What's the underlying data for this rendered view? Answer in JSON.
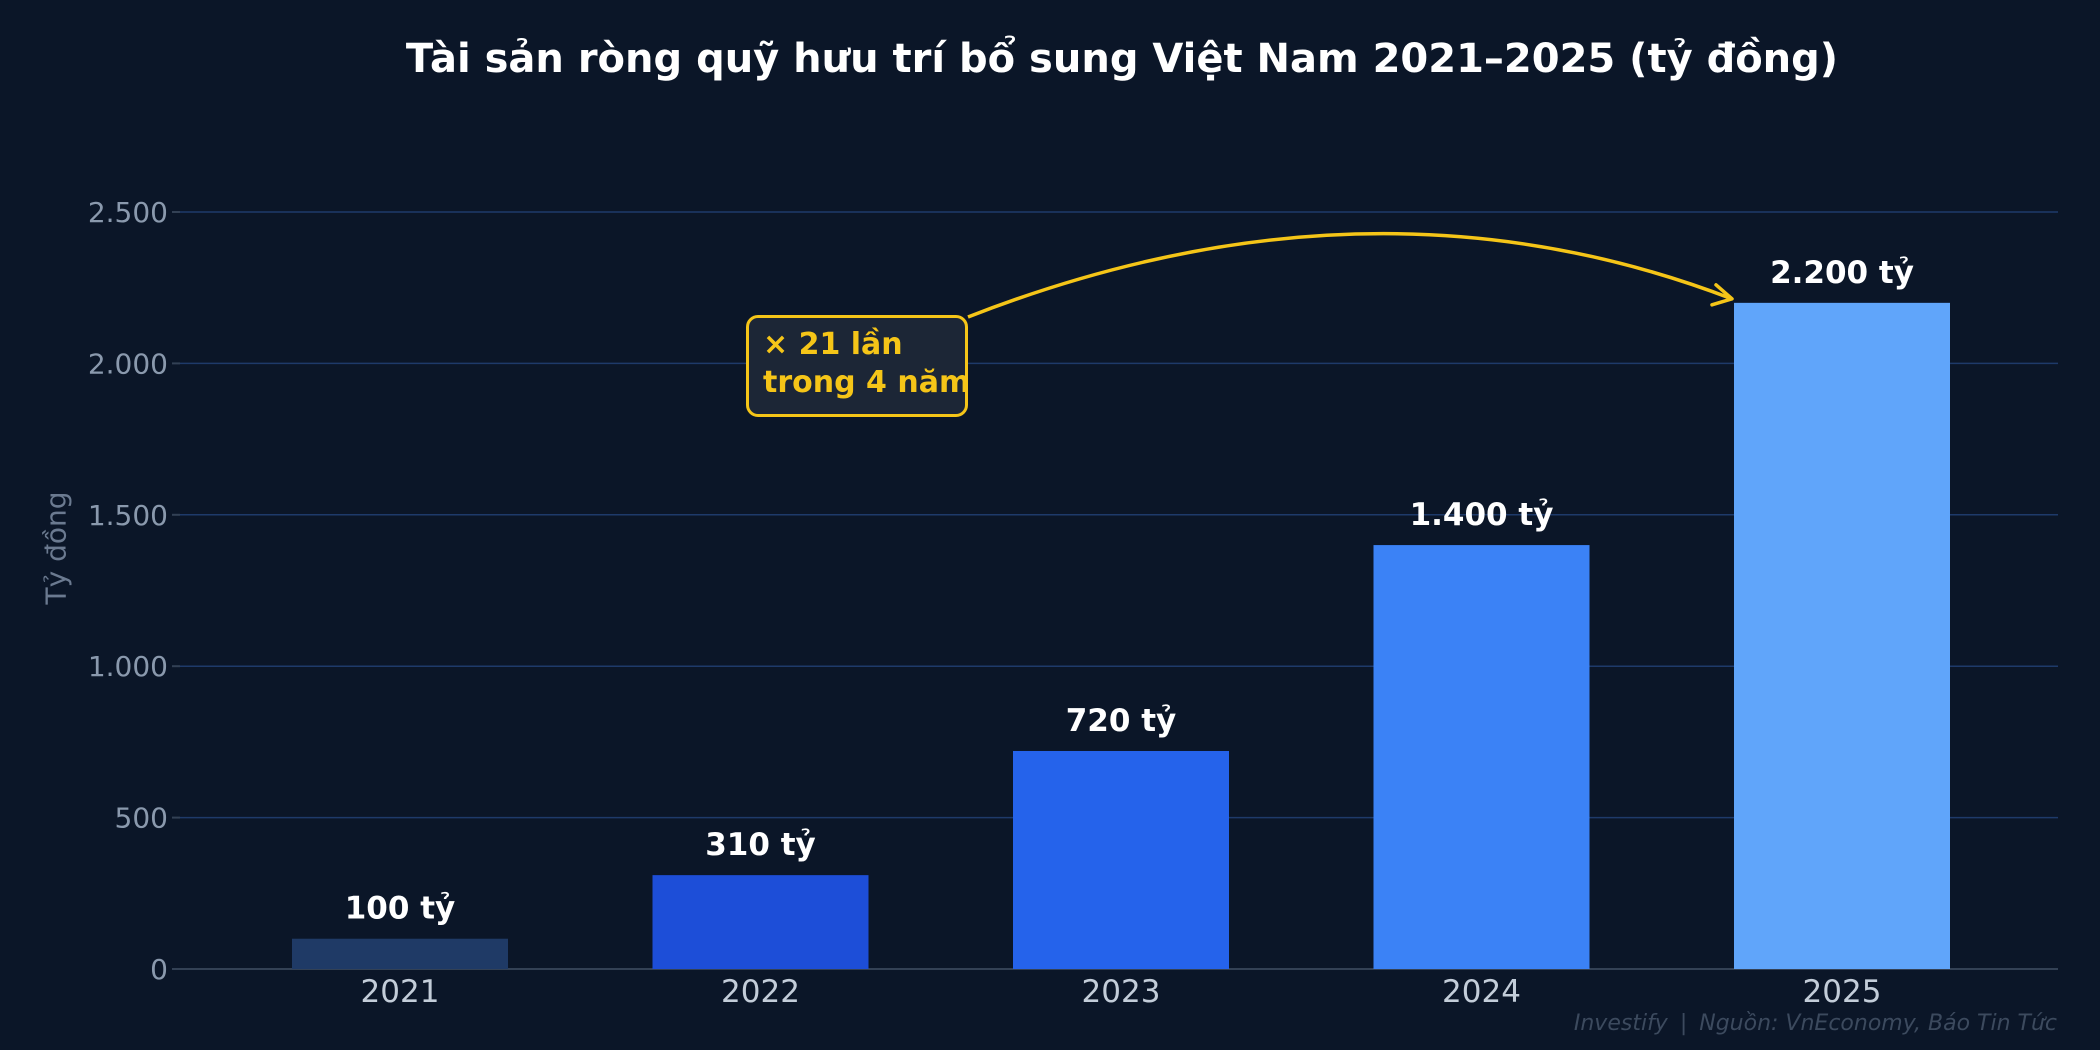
{
  "chart_data": {
    "type": "bar",
    "title": "Tài sản ròng quỹ hưu trí bổ sung Việt Nam 2021–2025 (tỷ đồng)",
    "ylabel": "Tỷ đồng",
    "xlabel": "",
    "categories": [
      "2021",
      "2022",
      "2023",
      "2024",
      "2025"
    ],
    "values": [
      100,
      310,
      720,
      1400,
      2200
    ],
    "data_labels": [
      "100 tỷ",
      "310 tỷ",
      "720 tỷ",
      "1.400 tỷ",
      "2.200 tỷ"
    ],
    "ylim": [
      0,
      2600
    ],
    "yticks": [
      0,
      500,
      1000,
      1500,
      2000,
      2500
    ],
    "ytick_labels": [
      "0",
      "500",
      "1.000",
      "1.500",
      "2.000",
      "2.500"
    ],
    "bar_colors": [
      "#1f3a66",
      "#1d4ed8",
      "#2563eb",
      "#3b82f6",
      "#60a5fa"
    ],
    "grid": true,
    "annotation": {
      "line1": "× 21 lần",
      "line2": "trong 4 năm",
      "color": "#f5c518"
    }
  },
  "footer": {
    "brand": "Investify",
    "separator": "|",
    "source": "Nguồn: VnEconomy, Báo Tin Tức"
  }
}
